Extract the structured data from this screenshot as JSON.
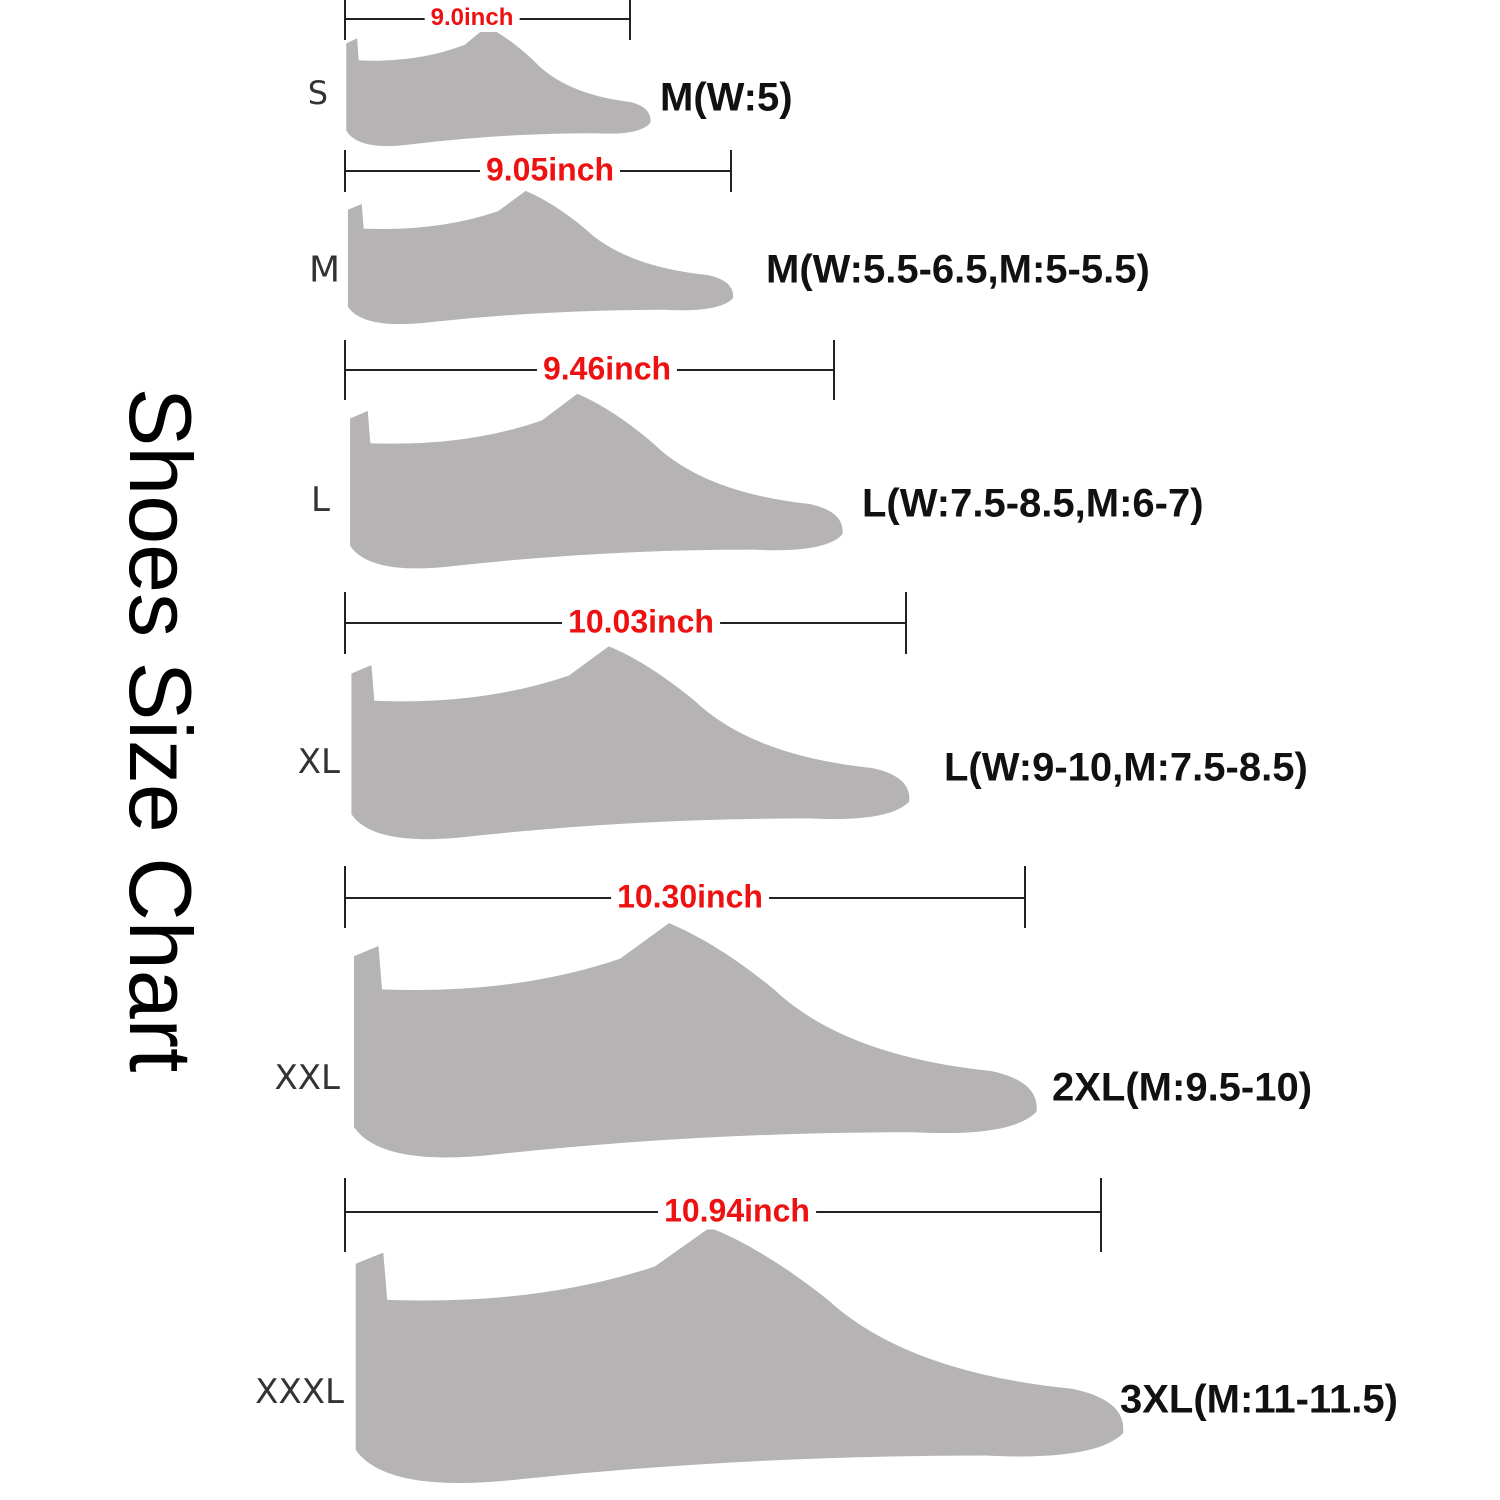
{
  "title": "Shoes Size Chart",
  "colors": {
    "shoe": "#b5b3b4",
    "measure_label": "#ee1111",
    "line": "#222222"
  },
  "sizes": [
    {
      "code": "S",
      "length": "9.0inch",
      "fit": "M(W:5)"
    },
    {
      "code": "M",
      "length": "9.05inch",
      "fit": "M(W:5.5-6.5,M:5-5.5)"
    },
    {
      "code": "L",
      "length": "9.46inch",
      "fit": "L(W:7.5-8.5,M:6-7)"
    },
    {
      "code": "XL",
      "length": "10.03inch",
      "fit": "L(W:9-10,M:7.5-8.5)"
    },
    {
      "code": "XXL",
      "length": "10.30inch",
      "fit": "2XL(M:9.5-10)"
    },
    {
      "code": "XXXL",
      "length": "10.94inch",
      "fit": "3XL(M:11-11.5)"
    }
  ]
}
